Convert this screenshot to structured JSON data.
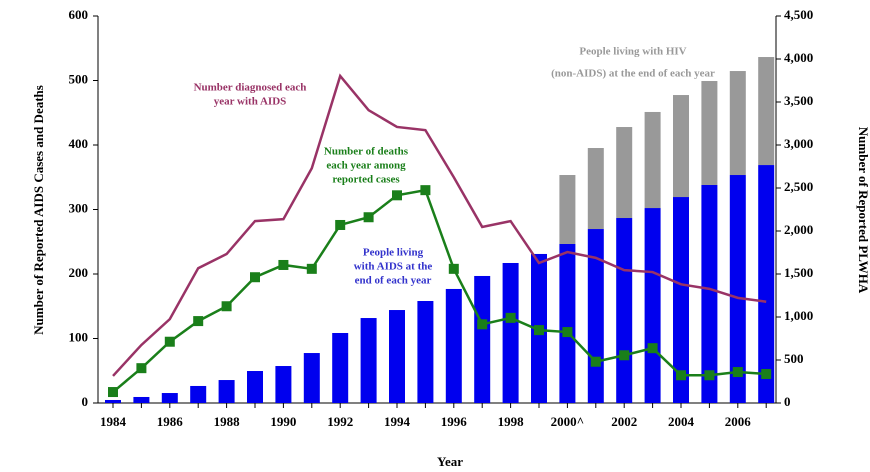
{
  "chart_data": {
    "type": "bar-line",
    "x_label": "Year",
    "y_label": "Number of Reported AIDS Cases and Deaths",
    "y2_label": "Number of Reported PLWHA",
    "categories": [
      "1984",
      null,
      "1986",
      null,
      "1988",
      null,
      "1990",
      null,
      "1992",
      null,
      "1994",
      null,
      "1996",
      null,
      "1998",
      null,
      "2000^",
      null,
      "2002",
      null,
      "2004",
      null,
      "2006",
      null
    ],
    "ylim": [
      0,
      600
    ],
    "yticks": [
      0,
      100,
      200,
      300,
      400,
      500,
      600
    ],
    "y2lim": [
      0,
      4500
    ],
    "y2ticks": [
      0,
      {
        "value": 500,
        "label": "500"
      },
      {
        "value": 1000,
        "label": "1,000"
      },
      {
        "value": 1500,
        "label": "1,500"
      },
      {
        "value": 2000,
        "label": "2,000"
      },
      {
        "value": 2500,
        "label": "2,500"
      },
      {
        "value": 3000,
        "label": "3,000"
      },
      {
        "value": 3500,
        "label": "3,500"
      },
      {
        "value": 4000,
        "label": "4,000"
      },
      {
        "value": 4500,
        "label": "4,500"
      }
    ],
    "series": [
      {
        "name": "People living with AIDS at the end of each year",
        "kind": "bar",
        "axis": "y2",
        "color": "#0000ee",
        "values": [
          35,
          70,
          116,
          198,
          267,
          372,
          430,
          581,
          814,
          988,
          1081,
          1186,
          1326,
          1477,
          1628,
          1733,
          1849,
          2023,
          2151,
          2267,
          2395,
          2535,
          2651,
          2767
        ]
      },
      {
        "name": "People living with HIV (non-AIDS) at the end of each year",
        "kind": "bar",
        "axis": "y2",
        "color": "#999999",
        "values": [
          null,
          null,
          null,
          null,
          null,
          null,
          null,
          null,
          null,
          null,
          null,
          null,
          null,
          null,
          null,
          null,
          802,
          942,
          1058,
          1117,
          1186,
          1209,
          1209,
          1256
        ]
      },
      {
        "name": "Number diagnosed each year with AIDS",
        "kind": "line",
        "color": "#993366",
        "values": [
          42,
          90,
          130,
          209,
          231,
          282,
          285,
          364,
          507,
          454,
          428,
          423,
          350,
          273,
          282,
          217,
          234,
          225,
          206,
          203,
          184,
          177,
          163,
          157
        ]
      },
      {
        "name": "Number of deaths each year among reported cases",
        "kind": "line",
        "marker": "square",
        "color": "#1a7f1a",
        "values": [
          17,
          54,
          95,
          127,
          150,
          195,
          214,
          208,
          276,
          288,
          322,
          330,
          208,
          122,
          132,
          113,
          110,
          64,
          74,
          85,
          43,
          43,
          48,
          45
        ]
      }
    ],
    "annotations": [
      {
        "lines": [
          "Number diagnosed each",
          "year with AIDS"
        ],
        "color": "#993366"
      },
      {
        "lines": [
          "Number of deaths",
          "each year among",
          "reported cases"
        ],
        "color": "#1a7f1a"
      },
      {
        "lines": [
          "People  living",
          "with AIDS at the",
          "end of each year"
        ],
        "color": "#3333cc"
      },
      {
        "lines": [
          "People  living with HIV",
          "(non-AIDS) at the end of each year"
        ],
        "color": "#999999"
      }
    ]
  }
}
